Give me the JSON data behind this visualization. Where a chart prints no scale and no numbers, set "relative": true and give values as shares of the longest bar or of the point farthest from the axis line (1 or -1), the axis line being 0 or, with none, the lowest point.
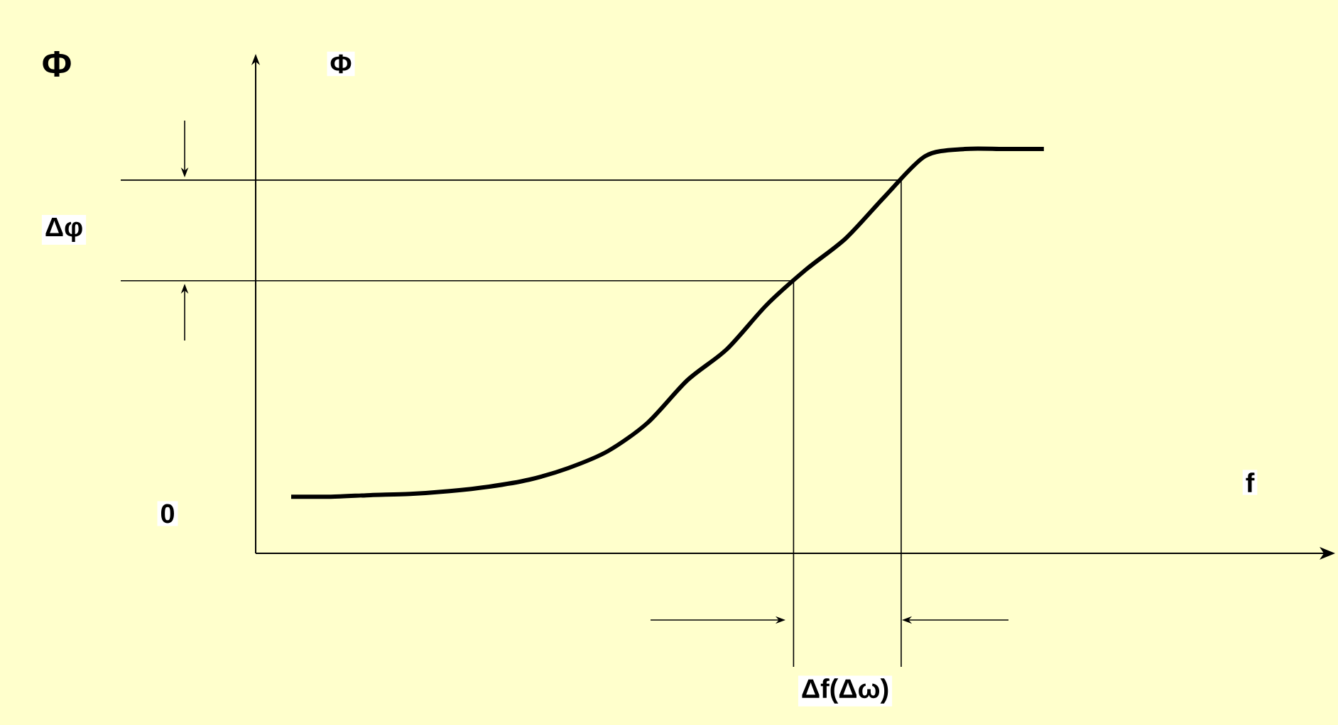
{
  "chart_data": {
    "type": "line",
    "relative": true,
    "title": "Φ",
    "ylabel": "Φ",
    "color": "#000000",
    "categories": [
      null,
      null,
      null,
      null,
      null,
      null,
      null,
      null,
      null,
      null,
      null,
      null,
      null,
      null,
      null,
      null,
      null,
      null,
      null,
      null
    ],
    "values": [
      0.14,
      0.14,
      0.144,
      0.147,
      0.154,
      0.165,
      0.182,
      0.211,
      0.253,
      0.323,
      0.428,
      0.505,
      0.614,
      0.702,
      0.779,
      0.884,
      0.982,
      1,
      1,
      1
    ],
    "ref_lines": [
      {
        "axis": "y",
        "value": 0.923
      },
      {
        "axis": "y",
        "value": 0.674
      }
    ],
    "annotations": [
      "0",
      "Δφ",
      "Δf(Δω)",
      "f"
    ]
  }
}
